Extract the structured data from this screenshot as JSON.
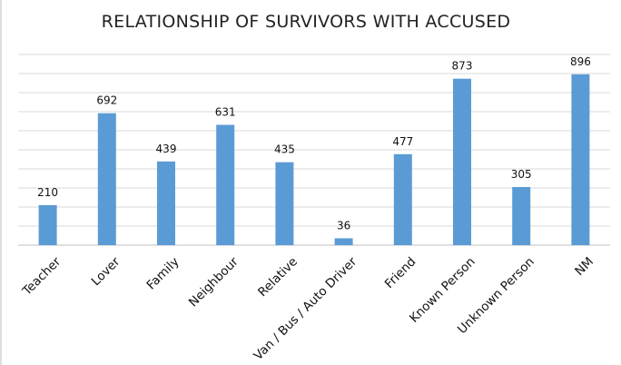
{
  "chart_data": {
    "type": "bar",
    "title": "RELATIONSHIP OF SURVIVORS WITH ACCUSED",
    "categories": [
      "Teacher",
      "Lover",
      "Family",
      "Neighbour",
      "Relative",
      "Van / Bus / Auto Driver",
      "Friend",
      "Known Person",
      "Unknown Person",
      "NM"
    ],
    "values": [
      210,
      692,
      439,
      631,
      435,
      36,
      477,
      873,
      305,
      896
    ],
    "data_labels": [
      "210",
      "692",
      "439",
      "631",
      "435",
      "36",
      "477",
      "873",
      "305",
      "896"
    ],
    "ylim": [
      0,
      1000
    ],
    "grid": true,
    "legend": "none",
    "colors": {
      "bar": "#5B9BD5",
      "grid": "#D9D9D9",
      "axis": "#BFBFBF"
    }
  }
}
